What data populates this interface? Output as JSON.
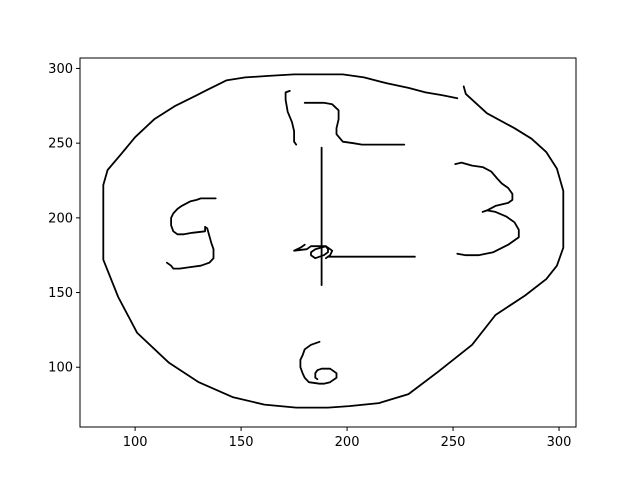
{
  "chart_data": {
    "type": "line",
    "title": "",
    "xlabel": "",
    "ylabel": "",
    "xlim": [
      74,
      308
    ],
    "ylim": [
      60,
      307
    ],
    "xticks": [
      100,
      150,
      200,
      250,
      300
    ],
    "yticks": [
      100,
      150,
      200,
      250,
      300
    ],
    "xtick_labels": [
      "100",
      "150",
      "200",
      "250",
      "300"
    ],
    "ytick_labels": [
      "100",
      "150",
      "200",
      "250",
      "300"
    ],
    "grid": false,
    "line_color": "#000000",
    "series": [
      {
        "x": [
          252,
          245,
          237,
          229,
          219,
          208,
          198,
          185,
          175,
          163,
          152,
          143,
          133,
          129,
          119,
          109,
          100,
          93,
          87,
          85,
          85,
          92,
          101,
          116,
          130,
          146,
          161,
          176,
          191,
          201,
          215,
          229,
          243,
          259,
          270,
          284,
          294,
          299,
          302,
          302,
          299,
          294,
          287,
          279,
          266,
          256,
          255
        ],
        "y": [
          280,
          282,
          284,
          287,
          290,
          294,
          296,
          296,
          296,
          295,
          294,
          292,
          285,
          282,
          275,
          266,
          254,
          242,
          232,
          222,
          172,
          147,
          123,
          103,
          90,
          80,
          75,
          73,
          73,
          74,
          76,
          82,
          97,
          115,
          135,
          148,
          159,
          168,
          180,
          218,
          233,
          244,
          253,
          260,
          270,
          283,
          288
        ]
      },
      {
        "x": [
          173,
          171,
          171,
          172,
          174,
          175,
          175,
          176
        ],
        "y": [
          285,
          284,
          279,
          271,
          264,
          258,
          251,
          249
        ]
      },
      {
        "x": [
          180,
          189,
          193,
          196,
          196,
          195,
          195,
          198,
          203,
          207,
          215,
          227
        ],
        "y": [
          277,
          277,
          276,
          272,
          266,
          260,
          256,
          251,
          250,
          249,
          249,
          249
        ]
      },
      {
        "x": [
          188,
          188
        ],
        "y": [
          247,
          155
        ]
      },
      {
        "x": [
          191,
          232
        ],
        "y": [
          174,
          174
        ]
      },
      {
        "x": [
          180,
          178,
          175,
          181,
          183,
          187,
          190,
          191,
          191,
          189,
          185,
          183,
          183,
          185,
          190,
          191,
          193,
          192,
          190
        ],
        "y": [
          182,
          180,
          178,
          179,
          181,
          181,
          181,
          179,
          177,
          175,
          173,
          175,
          177,
          179,
          181,
          180,
          178,
          175,
          173
        ]
      },
      {
        "x": [
          138,
          131,
          129,
          126,
          122,
          120,
          118,
          117,
          117,
          118,
          120,
          123,
          127,
          133,
          133,
          134,
          135,
          136,
          137,
          137,
          135,
          131,
          126,
          121,
          118,
          117,
          115
        ],
        "y": [
          213,
          213,
          212,
          211,
          208,
          206,
          203,
          200,
          195,
          191,
          189,
          189,
          190,
          191,
          194,
          193,
          188,
          183,
          179,
          173,
          170,
          168,
          167,
          166,
          166,
          168,
          170
        ]
      },
      {
        "x": [
          251,
          254,
          259,
          264,
          268,
          271,
          273,
          276,
          278,
          278,
          276,
          270,
          266,
          264,
          266,
          270,
          275,
          279,
          281,
          281,
          276,
          269,
          262,
          256,
          252
        ],
        "y": [
          236,
          237,
          235,
          234,
          231,
          226,
          223,
          220,
          216,
          212,
          210,
          208,
          205,
          204,
          205,
          204,
          201,
          197,
          192,
          187,
          182,
          177,
          175,
          175,
          176
        ]
      },
      {
        "x": [
          187,
          183,
          180,
          179,
          178,
          178,
          179,
          180,
          182,
          187,
          189,
          192,
          193,
          195,
          195,
          192,
          188,
          186,
          185,
          185,
          186
        ],
        "y": [
          117,
          115,
          112,
          108,
          105,
          100,
          96,
          93,
          90,
          89,
          89,
          90,
          91,
          93,
          96,
          99,
          99,
          98,
          96,
          93,
          92
        ]
      }
    ]
  }
}
